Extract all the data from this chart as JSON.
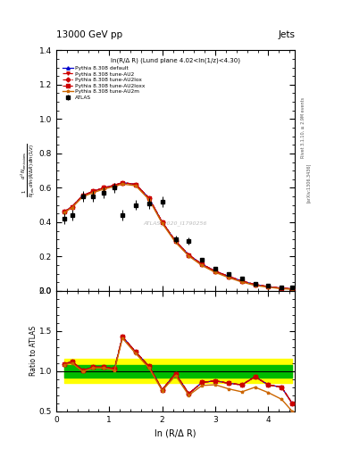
{
  "title_left": "13000 GeV pp",
  "title_right": "Jets",
  "plot_label": "ln(R/Δ R) (Lund plane 4.02<ln(1/z)<4.30)",
  "watermark": "ATLAS_2020_I1790256",
  "right_label_top": "Rivet 3.1.10, ≥ 2.9M events",
  "right_label_bot": "[arXiv:1306.3436]",
  "ylabel_main": "$\\frac{1}{N_{\\mathrm{jets}}}\\frac{d^2 N_{\\mathrm{emissions}}}{d\\ln(R/\\Delta R)\\,d\\ln(1/z)}$",
  "ylabel_ratio": "Ratio to ATLAS",
  "xlabel": "ln (R/Δ R)",
  "xlim": [
    0,
    4.5
  ],
  "ylim_main": [
    0,
    1.4
  ],
  "ylim_ratio": [
    0.5,
    2.0
  ],
  "x_data": [
    0.15,
    0.3,
    0.5,
    0.7,
    0.9,
    1.1,
    1.25,
    1.5,
    1.75,
    2.0,
    2.25,
    2.5,
    2.75,
    3.0,
    3.25,
    3.5,
    3.75,
    4.0,
    4.25,
    4.45
  ],
  "atlas_y": [
    0.42,
    0.44,
    0.55,
    0.55,
    0.57,
    0.6,
    0.44,
    0.5,
    0.51,
    0.52,
    0.3,
    0.29,
    0.18,
    0.13,
    0.1,
    0.07,
    0.04,
    0.03,
    0.02,
    0.02
  ],
  "atlas_yerr": [
    0.03,
    0.03,
    0.03,
    0.03,
    0.03,
    0.03,
    0.03,
    0.03,
    0.03,
    0.03,
    0.02,
    0.02,
    0.01,
    0.01,
    0.005,
    0.005,
    0.003,
    0.002,
    0.001,
    0.001
  ],
  "default_y": [
    0.46,
    0.49,
    0.555,
    0.58,
    0.6,
    0.615,
    0.63,
    0.62,
    0.54,
    0.4,
    0.29,
    0.21,
    0.155,
    0.115,
    0.085,
    0.058,
    0.037,
    0.025,
    0.016,
    0.012
  ],
  "au2_y": [
    0.46,
    0.49,
    0.555,
    0.58,
    0.6,
    0.615,
    0.63,
    0.62,
    0.54,
    0.4,
    0.29,
    0.21,
    0.155,
    0.115,
    0.085,
    0.058,
    0.037,
    0.025,
    0.016,
    0.012
  ],
  "au2lox_y": [
    0.46,
    0.49,
    0.555,
    0.58,
    0.6,
    0.615,
    0.63,
    0.62,
    0.54,
    0.4,
    0.29,
    0.21,
    0.155,
    0.115,
    0.085,
    0.058,
    0.037,
    0.025,
    0.016,
    0.012
  ],
  "au2loxx_y": [
    0.46,
    0.49,
    0.555,
    0.58,
    0.6,
    0.615,
    0.63,
    0.62,
    0.54,
    0.4,
    0.29,
    0.21,
    0.155,
    0.115,
    0.085,
    0.058,
    0.037,
    0.025,
    0.016,
    0.012
  ],
  "au2m_y": [
    0.455,
    0.485,
    0.548,
    0.572,
    0.593,
    0.608,
    0.622,
    0.612,
    0.532,
    0.393,
    0.283,
    0.203,
    0.148,
    0.108,
    0.078,
    0.052,
    0.032,
    0.022,
    0.013,
    0.01
  ],
  "ratio_default": [
    1.09,
    1.12,
    1.01,
    1.05,
    1.05,
    1.03,
    1.43,
    1.24,
    1.06,
    0.77,
    0.97,
    0.72,
    0.86,
    0.88,
    0.85,
    0.83,
    0.93,
    0.83,
    0.8,
    0.6
  ],
  "ratio_au2": [
    1.09,
    1.12,
    1.01,
    1.05,
    1.05,
    1.03,
    1.43,
    1.24,
    1.06,
    0.77,
    0.97,
    0.72,
    0.86,
    0.88,
    0.85,
    0.83,
    0.93,
    0.83,
    0.8,
    0.6
  ],
  "ratio_au2lox": [
    1.09,
    1.12,
    1.01,
    1.05,
    1.05,
    1.03,
    1.43,
    1.24,
    1.06,
    0.77,
    0.97,
    0.72,
    0.86,
    0.88,
    0.85,
    0.83,
    0.93,
    0.83,
    0.8,
    0.6
  ],
  "ratio_au2loxx": [
    1.09,
    1.12,
    1.01,
    1.05,
    1.05,
    1.03,
    1.43,
    1.24,
    1.06,
    0.77,
    0.97,
    0.72,
    0.86,
    0.88,
    0.85,
    0.83,
    0.93,
    0.83,
    0.8,
    0.6
  ],
  "ratio_au2m": [
    1.08,
    1.1,
    0.997,
    1.04,
    1.04,
    1.013,
    1.41,
    1.22,
    1.04,
    0.757,
    0.945,
    0.7,
    0.822,
    0.831,
    0.78,
    0.743,
    0.8,
    0.733,
    0.65,
    0.5
  ],
  "yellow_band_lo": [
    0.85,
    0.85,
    0.85,
    0.85,
    0.85,
    0.85,
    0.85,
    0.85,
    0.85,
    0.85,
    0.85,
    0.85,
    0.85,
    0.85,
    0.85,
    0.85,
    0.85,
    0.85,
    0.85,
    0.85
  ],
  "yellow_band_hi": [
    1.15,
    1.15,
    1.15,
    1.15,
    1.15,
    1.15,
    1.15,
    1.15,
    1.15,
    1.15,
    1.15,
    1.15,
    1.15,
    1.15,
    1.15,
    1.15,
    1.15,
    1.15,
    1.15,
    1.15
  ],
  "green_band_lo": [
    0.92,
    0.92,
    0.92,
    0.92,
    0.92,
    0.92,
    0.92,
    0.92,
    0.92,
    0.92,
    0.92,
    0.92,
    0.92,
    0.92,
    0.92,
    0.92,
    0.92,
    0.92,
    0.92,
    0.92
  ],
  "green_band_hi": [
    1.08,
    1.08,
    1.08,
    1.08,
    1.08,
    1.08,
    1.08,
    1.08,
    1.08,
    1.08,
    1.08,
    1.08,
    1.08,
    1.08,
    1.08,
    1.08,
    1.08,
    1.08,
    1.08,
    1.08
  ],
  "color_default": "#0000cc",
  "color_au2": "#cc0000",
  "color_au2lox": "#cc0000",
  "color_au2loxx": "#cc0000",
  "color_au2m": "#cc6600",
  "color_atlas": "#000000",
  "color_yellow": "#ffff00",
  "color_green": "#00bb00",
  "bg_color": "#ffffff"
}
